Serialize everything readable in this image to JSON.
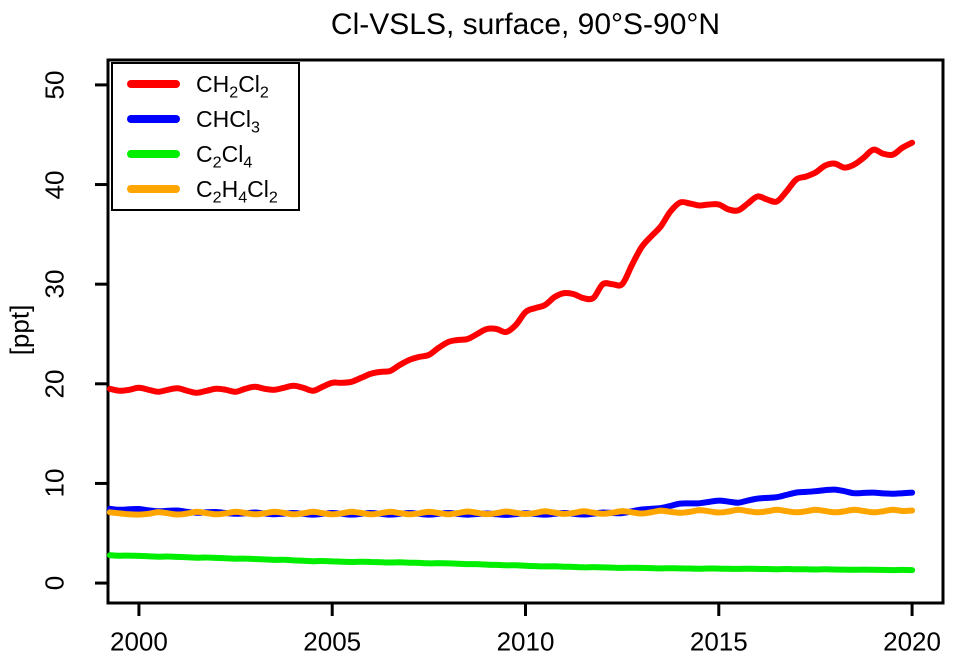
{
  "title": "Cl-VSLS, surface, 90°S-90°N",
  "chart_data": {
    "type": "line",
    "title": "Cl-VSLS, surface, 90°S-90°N",
    "xlabel": "",
    "ylabel": "[ppt]",
    "xlim": [
      1999.2,
      2020.8
    ],
    "ylim": [
      -2.0,
      52.5
    ],
    "xticks": [
      2000,
      2005,
      2010,
      2015,
      2020
    ],
    "yticks": [
      0,
      10,
      20,
      30,
      40,
      50
    ],
    "grid": false,
    "legend_position": "top-left",
    "frame_color": "#000000",
    "x": {
      "start": 1999.25,
      "step": 0.25,
      "count": 84
    },
    "series": [
      {
        "name": "CH₂Cl₂",
        "color": "#ff0000",
        "values": [
          19.5,
          19.3,
          19.4,
          19.6,
          19.4,
          19.2,
          19.4,
          19.55,
          19.3,
          19.1,
          19.3,
          19.5,
          19.4,
          19.2,
          19.5,
          19.7,
          19.5,
          19.4,
          19.6,
          19.8,
          19.6,
          19.3,
          19.7,
          20.1,
          20.1,
          20.2,
          20.6,
          21.0,
          21.2,
          21.3,
          21.9,
          22.4,
          22.7,
          22.9,
          23.6,
          24.2,
          24.4,
          24.5,
          25.0,
          25.5,
          25.5,
          25.2,
          25.9,
          27.2,
          27.6,
          27.9,
          28.7,
          29.1,
          29.0,
          28.6,
          28.6,
          30.0,
          30.0,
          30.0,
          31.9,
          33.7,
          34.8,
          35.8,
          37.3,
          38.2,
          38.1,
          37.9,
          38.0,
          38.0,
          37.5,
          37.4,
          38.1,
          38.8,
          38.5,
          38.3,
          39.3,
          40.5,
          40.8,
          41.2,
          41.9,
          42.1,
          41.7,
          42.0,
          42.7,
          43.5,
          43.1,
          43.0,
          43.7,
          44.2
        ]
      },
      {
        "name": "CHCl₃",
        "color": "#0000ff",
        "values": [
          7.45,
          7.35,
          7.4,
          7.43,
          7.3,
          7.2,
          7.25,
          7.28,
          7.15,
          7.05,
          7.1,
          7.13,
          7.03,
          6.95,
          7.0,
          7.08,
          6.98,
          6.9,
          6.97,
          7.03,
          6.95,
          6.87,
          6.95,
          7.03,
          6.95,
          6.87,
          6.95,
          7.03,
          6.95,
          6.87,
          6.95,
          7.03,
          6.95,
          6.87,
          6.95,
          7.03,
          6.94,
          6.86,
          6.93,
          6.98,
          6.91,
          6.84,
          6.92,
          7.01,
          6.94,
          6.87,
          6.95,
          7.03,
          6.95,
          6.88,
          6.96,
          7.08,
          7.03,
          7.02,
          7.2,
          7.38,
          7.45,
          7.52,
          7.75,
          7.98,
          8.0,
          8.02,
          8.15,
          8.28,
          8.18,
          8.07,
          8.28,
          8.48,
          8.55,
          8.62,
          8.85,
          9.08,
          9.15,
          9.22,
          9.33,
          9.38,
          9.22,
          9.02,
          9.05,
          9.08,
          9.0,
          8.97,
          9.02,
          9.08
        ]
      },
      {
        "name": "C₂Cl₄",
        "color": "#00ee00",
        "values": [
          2.8,
          2.75,
          2.76,
          2.73,
          2.7,
          2.65,
          2.67,
          2.63,
          2.6,
          2.55,
          2.57,
          2.53,
          2.5,
          2.45,
          2.46,
          2.42,
          2.38,
          2.33,
          2.34,
          2.28,
          2.25,
          2.2,
          2.22,
          2.18,
          2.15,
          2.12,
          2.14,
          2.12,
          2.1,
          2.06,
          2.08,
          2.04,
          2.02,
          1.98,
          2.0,
          1.97,
          1.94,
          1.9,
          1.9,
          1.85,
          1.82,
          1.78,
          1.79,
          1.74,
          1.7,
          1.67,
          1.68,
          1.64,
          1.62,
          1.58,
          1.6,
          1.57,
          1.55,
          1.52,
          1.54,
          1.52,
          1.5,
          1.47,
          1.49,
          1.47,
          1.46,
          1.44,
          1.46,
          1.45,
          1.44,
          1.42,
          1.44,
          1.42,
          1.41,
          1.39,
          1.41,
          1.39,
          1.38,
          1.36,
          1.38,
          1.36,
          1.35,
          1.33,
          1.35,
          1.33,
          1.32,
          1.3,
          1.32,
          1.3
        ]
      },
      {
        "name": "C₂H₄Cl₂",
        "color": "#ffa500",
        "values": [
          7.1,
          7.0,
          6.9,
          6.87,
          6.95,
          7.12,
          7.0,
          6.88,
          6.98,
          7.15,
          7.02,
          6.9,
          7.0,
          7.15,
          7.03,
          6.9,
          7.0,
          7.16,
          7.04,
          6.9,
          7.0,
          7.15,
          7.02,
          6.9,
          7.0,
          7.16,
          7.03,
          6.9,
          7.0,
          7.15,
          7.02,
          6.9,
          7.0,
          7.16,
          7.03,
          6.9,
          7.02,
          7.18,
          7.05,
          6.92,
          7.02,
          7.18,
          7.05,
          6.93,
          7.03,
          7.2,
          7.07,
          6.94,
          7.04,
          7.2,
          7.07,
          6.95,
          7.06,
          7.22,
          7.1,
          6.98,
          7.1,
          7.27,
          7.15,
          7.05,
          7.15,
          7.32,
          7.2,
          7.08,
          7.18,
          7.35,
          7.22,
          7.1,
          7.2,
          7.35,
          7.22,
          7.1,
          7.2,
          7.36,
          7.23,
          7.1,
          7.2,
          7.36,
          7.23,
          7.1,
          7.2,
          7.36,
          7.23,
          7.28
        ]
      }
    ]
  }
}
